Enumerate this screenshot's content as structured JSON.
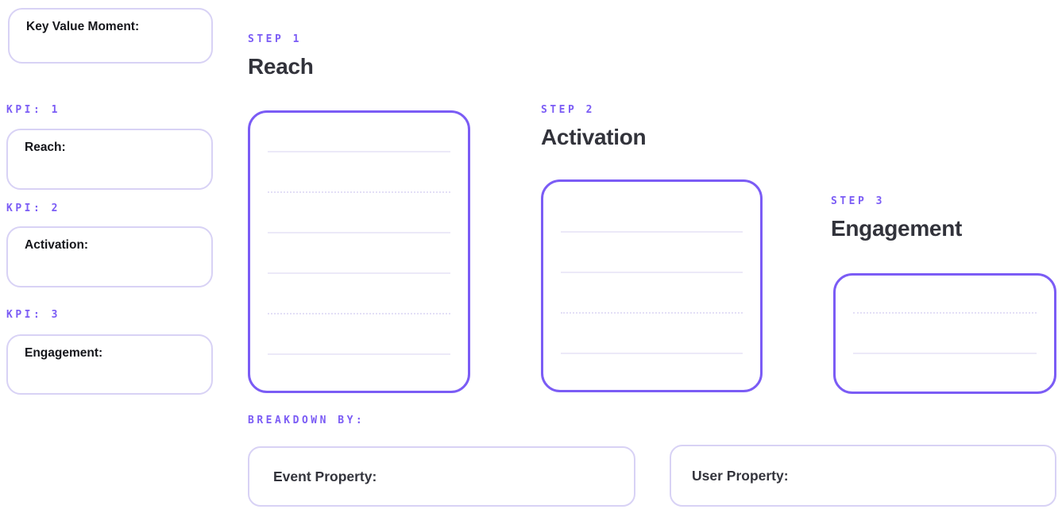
{
  "palette": {
    "accent_purple": "#7B5CF5",
    "soft_border": "#D8D2F5",
    "rule_line": "#ECE9F8",
    "heading_text": "#32333B",
    "label_text": "#15161B"
  },
  "key_value_moment": {
    "label": "Key Value Moment:"
  },
  "kpis": [
    {
      "tag": "KPI: 1",
      "field_label": "Reach:"
    },
    {
      "tag": "KPI: 2",
      "field_label": "Activation:"
    },
    {
      "tag": "KPI: 3",
      "field_label": "Engagement:"
    }
  ],
  "steps": [
    {
      "tag": "STEP 1",
      "title": "Reach",
      "note_lines": [
        "solid",
        "dotted",
        "solid",
        "solid",
        "dotted",
        "solid"
      ]
    },
    {
      "tag": "STEP 2",
      "title": "Activation",
      "note_lines": [
        "solid",
        "solid",
        "dotted",
        "solid"
      ]
    },
    {
      "tag": "STEP 3",
      "title": "Engagement",
      "note_lines": [
        "dotted",
        "solid"
      ]
    }
  ],
  "breakdown": {
    "tag": "BREAKDOWN BY:",
    "fields": [
      {
        "label": "Event Property:"
      },
      {
        "label": "User Property:"
      }
    ]
  }
}
